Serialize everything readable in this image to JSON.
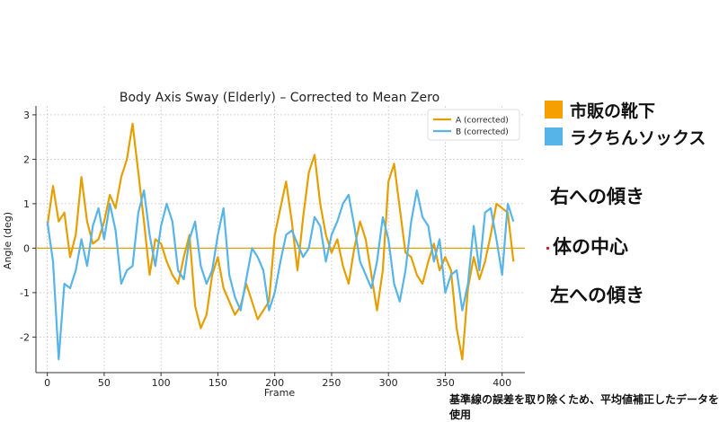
{
  "chart_data": {
    "type": "line",
    "title": "Body Axis Sway (Elderly) – Corrected to Mean Zero",
    "xlabel": "Frame",
    "ylabel": "Angle (deg)",
    "xlim": [
      -10,
      420
    ],
    "ylim": [
      -2.8,
      3.2
    ],
    "xticks": [
      0,
      50,
      100,
      150,
      200,
      250,
      300,
      350,
      400
    ],
    "yticks": [
      -2,
      -1,
      0,
      1,
      2,
      3
    ],
    "grid": true,
    "legend_position": "top-right",
    "reference_line": {
      "y": 0,
      "color": "#E0A000"
    },
    "series": [
      {
        "name": "A (corrected)",
        "color": "#E69F00",
        "x": [
          0,
          5,
          10,
          15,
          20,
          25,
          30,
          35,
          40,
          45,
          50,
          55,
          60,
          65,
          70,
          75,
          80,
          85,
          90,
          95,
          100,
          105,
          110,
          115,
          120,
          125,
          130,
          135,
          140,
          145,
          150,
          155,
          160,
          165,
          170,
          175,
          180,
          185,
          190,
          195,
          200,
          205,
          210,
          215,
          220,
          225,
          230,
          235,
          240,
          245,
          250,
          255,
          260,
          265,
          270,
          275,
          280,
          285,
          290,
          295,
          300,
          305,
          310,
          315,
          320,
          325,
          330,
          335,
          340,
          345,
          350,
          355,
          360,
          365,
          370,
          375,
          380,
          385,
          390,
          395,
          400,
          405,
          410
        ],
        "y": [
          0.5,
          1.4,
          0.6,
          0.8,
          -0.2,
          0.3,
          1.6,
          0.6,
          0.1,
          0.2,
          0.6,
          1.2,
          0.9,
          1.6,
          2.0,
          2.8,
          1.7,
          0.6,
          -0.6,
          0.2,
          0.1,
          -0.3,
          -0.6,
          -0.8,
          -0.2,
          0.3,
          -1.3,
          -1.8,
          -1.5,
          -0.6,
          -0.2,
          -0.9,
          -1.2,
          -1.5,
          -1.3,
          -0.8,
          -1.2,
          -1.6,
          -1.4,
          -1.2,
          0.3,
          0.9,
          1.5,
          0.6,
          -0.5,
          0.7,
          1.7,
          2.1,
          1.0,
          0.3,
          -0.1,
          0.2,
          -0.4,
          -0.8,
          0.0,
          0.6,
          0.2,
          -0.6,
          -1.4,
          -0.5,
          1.5,
          1.9,
          0.9,
          -0.1,
          -0.2,
          -0.6,
          -0.8,
          -0.3,
          0.1,
          -0.5,
          -0.2,
          -0.5,
          -1.8,
          -2.5,
          -0.9,
          -0.2,
          -0.7,
          -0.3,
          0.3,
          1.0,
          0.9,
          0.8,
          -0.3
        ]
      },
      {
        "name": "B (corrected)",
        "color": "#56B4E9",
        "x": [
          0,
          5,
          10,
          15,
          20,
          25,
          30,
          35,
          40,
          45,
          50,
          55,
          60,
          65,
          70,
          75,
          80,
          85,
          90,
          95,
          100,
          105,
          110,
          115,
          120,
          125,
          130,
          135,
          140,
          145,
          150,
          155,
          160,
          165,
          170,
          175,
          180,
          185,
          190,
          195,
          200,
          205,
          210,
          215,
          220,
          225,
          230,
          235,
          240,
          245,
          250,
          255,
          260,
          265,
          270,
          275,
          280,
          285,
          290,
          295,
          300,
          305,
          310,
          315,
          320,
          325,
          330,
          335,
          340,
          345,
          350,
          355,
          360,
          365,
          370,
          375,
          380,
          385,
          390,
          395,
          400,
          405,
          410
        ],
        "y": [
          0.6,
          -0.3,
          -2.5,
          -0.8,
          -0.9,
          -0.5,
          0.2,
          -0.4,
          0.5,
          0.9,
          0.2,
          1.0,
          0.4,
          -0.8,
          -0.5,
          -0.4,
          0.8,
          1.3,
          0.3,
          -0.4,
          0.5,
          1.0,
          0.6,
          -0.5,
          -0.7,
          0.2,
          0.6,
          -0.4,
          -0.8,
          -0.5,
          0.3,
          0.9,
          -0.6,
          -1.1,
          -1.4,
          -0.7,
          0.0,
          -0.2,
          -0.5,
          -1.4,
          -1.0,
          -0.3,
          0.3,
          0.4,
          0.1,
          -0.2,
          0.0,
          0.7,
          0.5,
          -0.3,
          0.3,
          0.6,
          1.0,
          1.2,
          0.5,
          -0.3,
          -0.6,
          -0.9,
          -0.3,
          0.7,
          0.2,
          -0.8,
          -1.2,
          -0.5,
          0.6,
          1.3,
          0.7,
          0.5,
          -0.3,
          0.2,
          -1.0,
          -0.6,
          -0.5,
          -1.4,
          -0.8,
          0.5,
          -0.5,
          0.8,
          0.9,
          0.2,
          -0.6,
          1.0,
          0.6
        ]
      }
    ]
  },
  "side_legend": {
    "items": [
      {
        "label": "市販の靴下",
        "color": "#F5A000"
      },
      {
        "label": "ラクちんソックス",
        "color": "#56B4E9"
      }
    ]
  },
  "annotations": {
    "right_tilt": "右への傾き",
    "center": "体の中心",
    "left_tilt": "左への傾き"
  },
  "footnote": "基準線の誤差を取り除くため、平均値補正したデータを使用"
}
